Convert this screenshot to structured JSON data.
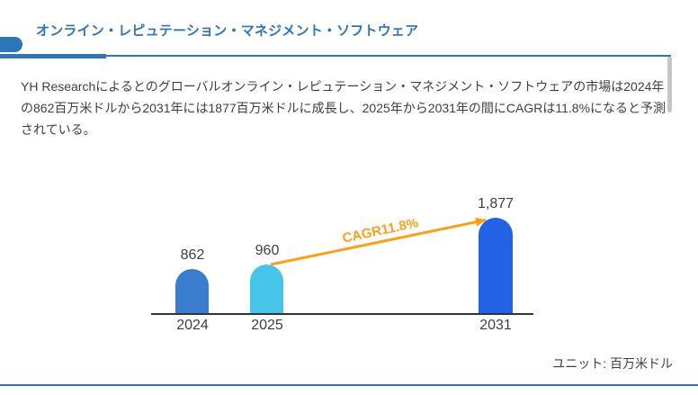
{
  "theme": {
    "accent_color": "#2E75B6",
    "background": "#FFFFFF"
  },
  "header": {
    "title": "オンライン・レピュテーション・マネジメント・ソフトウェア"
  },
  "summary": {
    "text": "YH Researchによるとのグローバルオンライン・レピュテーション・マネジメント・ソフトウェアの市場は2024年の862百万米ドルから2031年には1877百万米ドルに成長し、2025年から2031年の間にCAGRは11.8%になると予測されている。"
  },
  "chart_data": {
    "type": "bar",
    "title": "",
    "categories": [
      "2024",
      "2025",
      "2031"
    ],
    "values": [
      862,
      960,
      1877
    ],
    "value_labels": [
      "862",
      "960",
      "1,877"
    ],
    "bar_colors": [
      "#3A7CCE",
      "#47C5E8",
      "#2361E5"
    ],
    "ylim": [
      0,
      1900
    ],
    "grid": false,
    "annotation": {
      "label": "CAGR11.8%",
      "color": "#F9A11B",
      "from_category": "2025",
      "to_category": "2031"
    },
    "unit_label": "ユニット: 百万米ドル",
    "axis_color": "#333333",
    "label_color": "#3F3F3F"
  }
}
